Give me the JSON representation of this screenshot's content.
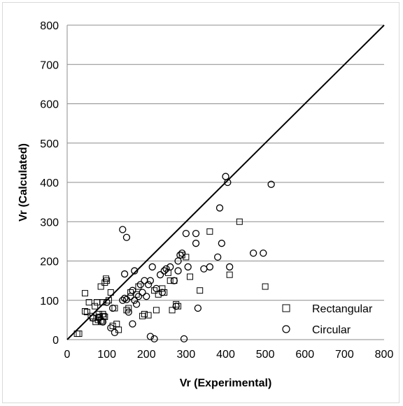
{
  "chart_data": {
    "type": "scatter",
    "title": "",
    "xlabel": "Vr (Experimental)",
    "ylabel": "Vr (Calculated)",
    "xlim": [
      0,
      800
    ],
    "ylim": [
      0,
      800
    ],
    "xticks": [
      "0",
      "100",
      "200",
      "300",
      "400",
      "500",
      "600",
      "700",
      "800"
    ],
    "yticks": [
      "0",
      "100",
      "200",
      "300",
      "400",
      "500",
      "600",
      "700",
      "800"
    ],
    "grid": "horizontal",
    "legend_position": "bottom-right",
    "reference_line": {
      "from": [
        0,
        0
      ],
      "to": [
        800,
        800
      ]
    },
    "series": [
      {
        "name": "Rectangular",
        "marker": "square",
        "points": [
          [
            25,
            15
          ],
          [
            30,
            15
          ],
          [
            45,
            118
          ],
          [
            45,
            72
          ],
          [
            50,
            70
          ],
          [
            55,
            95
          ],
          [
            60,
            60
          ],
          [
            65,
            55
          ],
          [
            70,
            85
          ],
          [
            72,
            45
          ],
          [
            75,
            95
          ],
          [
            78,
            50
          ],
          [
            80,
            65
          ],
          [
            82,
            58
          ],
          [
            85,
            48
          ],
          [
            85,
            135
          ],
          [
            88,
            45
          ],
          [
            90,
            65
          ],
          [
            90,
            95
          ],
          [
            92,
            60
          ],
          [
            95,
            58
          ],
          [
            95,
            145
          ],
          [
            98,
            155
          ],
          [
            100,
            150
          ],
          [
            105,
            100
          ],
          [
            110,
            120
          ],
          [
            115,
            35
          ],
          [
            120,
            80
          ],
          [
            125,
            40
          ],
          [
            130,
            25
          ],
          [
            150,
            75
          ],
          [
            155,
            80
          ],
          [
            160,
            120
          ],
          [
            175,
            115
          ],
          [
            180,
            135
          ],
          [
            190,
            60
          ],
          [
            195,
            65
          ],
          [
            205,
            62
          ],
          [
            220,
            125
          ],
          [
            225,
            75
          ],
          [
            230,
            115
          ],
          [
            240,
            130
          ],
          [
            245,
            120
          ],
          [
            255,
            170
          ],
          [
            260,
            150
          ],
          [
            265,
            75
          ],
          [
            270,
            150
          ],
          [
            275,
            90
          ],
          [
            280,
            85
          ],
          [
            290,
            215
          ],
          [
            300,
            210
          ],
          [
            310,
            160
          ],
          [
            335,
            125
          ],
          [
            360,
            275
          ],
          [
            410,
            165
          ],
          [
            435,
            300
          ],
          [
            500,
            135
          ]
        ]
      },
      {
        "name": "Circular",
        "marker": "circle",
        "points": [
          [
            65,
            55
          ],
          [
            80,
            55
          ],
          [
            90,
            45
          ],
          [
            100,
            95
          ],
          [
            110,
            30
          ],
          [
            115,
            80
          ],
          [
            120,
            18
          ],
          [
            140,
            100
          ],
          [
            140,
            280
          ],
          [
            145,
            105
          ],
          [
            145,
            167
          ],
          [
            150,
            260
          ],
          [
            150,
            102
          ],
          [
            155,
            70
          ],
          [
            160,
            110
          ],
          [
            165,
            40
          ],
          [
            165,
            125
          ],
          [
            170,
            175
          ],
          [
            170,
            100
          ],
          [
            175,
            90
          ],
          [
            180,
            110
          ],
          [
            185,
            140
          ],
          [
            190,
            120
          ],
          [
            195,
            150
          ],
          [
            200,
            110
          ],
          [
            205,
            140
          ],
          [
            210,
            8
          ],
          [
            210,
            150
          ],
          [
            215,
            185
          ],
          [
            220,
            2
          ],
          [
            225,
            130
          ],
          [
            235,
            165
          ],
          [
            240,
            120
          ],
          [
            245,
            175
          ],
          [
            250,
            180
          ],
          [
            260,
            185
          ],
          [
            270,
            150
          ],
          [
            275,
            85
          ],
          [
            280,
            200
          ],
          [
            280,
            175
          ],
          [
            285,
            215
          ],
          [
            290,
            220
          ],
          [
            295,
            2
          ],
          [
            300,
            270
          ],
          [
            305,
            185
          ],
          [
            325,
            270
          ],
          [
            325,
            245
          ],
          [
            330,
            80
          ],
          [
            345,
            180
          ],
          [
            360,
            185
          ],
          [
            380,
            210
          ],
          [
            385,
            335
          ],
          [
            390,
            245
          ],
          [
            400,
            415
          ],
          [
            405,
            400
          ],
          [
            410,
            185
          ],
          [
            470,
            220
          ],
          [
            495,
            220
          ],
          [
            515,
            395
          ]
        ]
      }
    ]
  }
}
